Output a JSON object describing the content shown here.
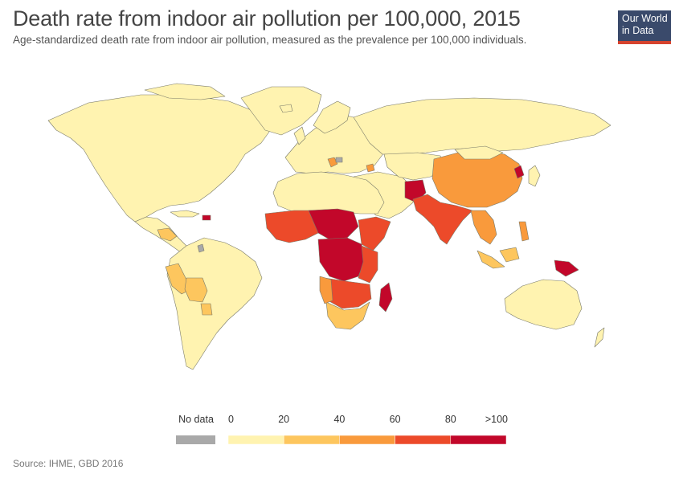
{
  "title": "Death rate from indoor air pollution per 100,000, 2015",
  "subtitle": "Age-standardized death rate from indoor air pollution, measured as the prevalence per 100,000 individuals.",
  "logo": {
    "line1": "Our World",
    "line2": "in Data",
    "bg": "#3a4a6b",
    "accent": "#d6432e"
  },
  "source": "Source: IHME, GBD 2016",
  "legend": {
    "no_data_label": "No data",
    "no_data_color": "#a9a9a9",
    "tick_labels": [
      "0",
      "20",
      "40",
      "60",
      "80",
      ">100"
    ],
    "bins": [
      {
        "from": 0,
        "to": 20,
        "color": "#fff3b0"
      },
      {
        "from": 20,
        "to": 40,
        "color": "#fdc65e"
      },
      {
        "from": 40,
        "to": 60,
        "color": "#f99a3c"
      },
      {
        "from": 60,
        "to": 80,
        "color": "#ec4a2a"
      },
      {
        "from": 80,
        "to": 100,
        "color": "#c2072a"
      }
    ]
  },
  "map": {
    "ocean_color": "#ffffff",
    "border_color": "#7a7a6a"
  }
}
